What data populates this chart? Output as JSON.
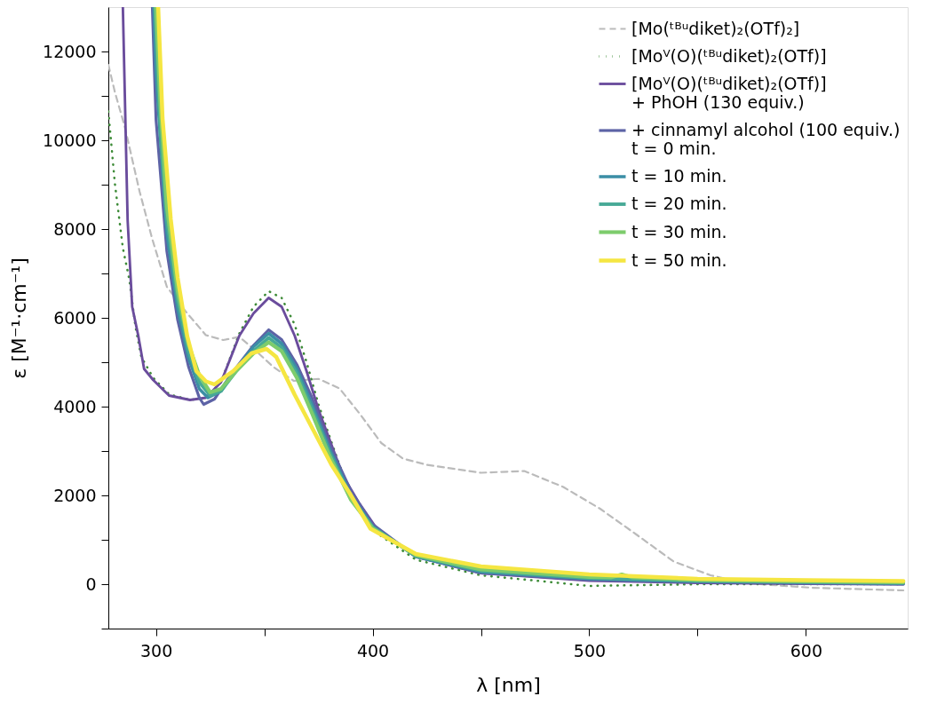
{
  "chart_data": {
    "type": "line",
    "xlabel": "λ [nm]",
    "ylabel": "ε [M⁻¹·cm⁻¹]",
    "xlim": [
      278,
      647
    ],
    "ylim": [
      -1000,
      13000
    ],
    "xticks": [
      {
        "value": 300,
        "label": "300"
      },
      {
        "value": 350,
        "label": null
      },
      {
        "value": 400,
        "label": "400"
      },
      {
        "value": 450,
        "label": null
      },
      {
        "value": 500,
        "label": "500"
      },
      {
        "value": 550,
        "label": null
      },
      {
        "value": 600,
        "label": "600"
      }
    ],
    "yticks": [
      {
        "value": -1000,
        "label": null
      },
      0,
      {
        "value": 1000,
        "label": null
      },
      2000,
      {
        "value": 3000,
        "label": null
      },
      4000,
      {
        "value": 5000,
        "label": null
      },
      6000,
      {
        "value": 7000,
        "label": null
      },
      8000,
      {
        "value": 9000,
        "label": null
      },
      10000,
      {
        "value": 11000,
        "label": null
      },
      12000
    ],
    "grid": false,
    "legend": "top right",
    "series": [
      {
        "name": "[Mo(ᵗᴮᵘdiket)₂(OTf)₂]",
        "color": "#bbbbbb",
        "line_style": "dashed",
        "x": [
          278,
          281,
          285.6,
          292.4,
          298.3,
          305,
          313.6,
          323,
          331,
          338.5,
          346,
          354,
          363.6,
          375,
          384.7,
          394.5,
          404,
          414,
          425,
          450,
          470,
          488,
          505,
          522,
          539,
          556,
          573,
          602.5,
          645
        ],
        "values": [
          11700,
          11090,
          10300,
          8850,
          7770,
          6700,
          6150,
          5610,
          5500,
          5570,
          5260,
          4900,
          4580,
          4625,
          4410,
          3810,
          3180,
          2830,
          2690,
          2510,
          2550,
          2190,
          1700,
          1110,
          510,
          200,
          20,
          -80,
          -140
        ]
      },
      {
        "name": "[Moⱽ(O)(ᵗᴮᵘdiket)₂(OTf)]",
        "color": "#3d8b37",
        "line_style": "dotted",
        "x": [
          278,
          281,
          284.7,
          287.7,
          290.5,
          293.2,
          298.7,
          306,
          315.7,
          323,
          330,
          338.5,
          345,
          352,
          358,
          364,
          369.5,
          375,
          381,
          386.4,
          393.6,
          402,
          420,
          450,
          500,
          550,
          600,
          645
        ],
        "values": [
          10650,
          9030,
          7570,
          6860,
          5800,
          5120,
          4650,
          4280,
          4150,
          4200,
          4550,
          5650,
          6250,
          6600,
          6450,
          5850,
          5000,
          4050,
          3200,
          2450,
          1800,
          1150,
          550,
          200,
          -40,
          0,
          0,
          0
        ]
      },
      {
        "name": "[Moⱽ(O)(ᵗᴮᵘdiket)₂(OTf)]\n+ PhOH (130 equiv.)",
        "color": "#6a4c9c",
        "line_style": "solid",
        "x": [
          284.7,
          286.9,
          289,
          291.8,
          294.5,
          298.7,
          306,
          315.7,
          323,
          330,
          338.5,
          345,
          352,
          358,
          364,
          369.5,
          375,
          381,
          386.4,
          393.6,
          402,
          420,
          450,
          500,
          550,
          600,
          645
        ],
        "values": [
          13000,
          8200,
          6250,
          5600,
          4850,
          4600,
          4250,
          4150,
          4200,
          4550,
          5600,
          6100,
          6450,
          6250,
          5600,
          4800,
          3930,
          3140,
          2430,
          1840,
          1245,
          620,
          250,
          80,
          30,
          10,
          0
        ]
      },
      {
        "name": "+ cinnamyl alcohol (100 equiv.)\nt = 0 min.",
        "color": "#5d63a6",
        "line_style": "solid",
        "x": [
          298.3,
          300,
          305,
          310,
          315,
          320,
          322,
          327,
          335,
          345,
          352,
          358,
          365,
          372,
          380,
          390,
          400,
          420,
          450,
          500,
          550,
          600,
          645
        ],
        "values": [
          13000,
          10470,
          7500,
          5950,
          4900,
          4200,
          4050,
          4170,
          4750,
          5380,
          5730,
          5510,
          4950,
          4200,
          3150,
          2100,
          1350,
          620,
          250,
          100,
          50,
          20,
          0
        ]
      },
      {
        "name": "t = 10 min.",
        "color": "#3b8ea5",
        "line_style": "solid",
        "x": [
          299,
          300,
          305,
          310,
          315,
          320,
          324,
          330,
          337,
          345,
          352,
          358,
          365,
          372,
          380,
          390,
          400,
          420,
          450,
          500,
          550,
          600,
          645
        ],
        "values": [
          13000,
          11500,
          7900,
          6200,
          5100,
          4400,
          4200,
          4350,
          4850,
          5350,
          5650,
          5420,
          4850,
          4050,
          3050,
          2000,
          1300,
          620,
          280,
          120,
          60,
          40,
          20
        ]
      },
      {
        "name": "t = 20 min.",
        "color": "#46a996",
        "line_style": "solid",
        "x": [
          299.5,
          302,
          305,
          310,
          315,
          320,
          325,
          330,
          337,
          345,
          352,
          358,
          365,
          372,
          380,
          390,
          400,
          420,
          450,
          500,
          550,
          600,
          645
        ],
        "values": [
          13000,
          10200,
          8200,
          6400,
          5250,
          4550,
          4250,
          4350,
          4800,
          5250,
          5550,
          5330,
          4750,
          3950,
          2980,
          1950,
          1280,
          640,
          300,
          140,
          80,
          50,
          30
        ]
      },
      {
        "name": "t = 30 min.",
        "color": "#7dcc6c",
        "line_style": "solid",
        "x": [
          300,
          302,
          305,
          310,
          315,
          320,
          325,
          330,
          337,
          345,
          352,
          358,
          365,
          372,
          380,
          390,
          400,
          420,
          450,
          500,
          510,
          515,
          520,
          550,
          600,
          645
        ],
        "values": [
          13000,
          10800,
          8500,
          6600,
          5400,
          4700,
          4320,
          4400,
          4800,
          5200,
          5450,
          5250,
          4650,
          3850,
          2900,
          1900,
          1260,
          650,
          330,
          160,
          150,
          220,
          150,
          90,
          60,
          40
        ]
      },
      {
        "name": "t = 50 min.",
        "color": "#f5e642",
        "line_style": "solid",
        "x": [
          301,
          303,
          306.8,
          310,
          314.4,
          318.6,
          323,
          327,
          335.6,
          344,
          351,
          355.5,
          364,
          372.5,
          381,
          389.4,
          399,
          420,
          450,
          500,
          550,
          600,
          645
        ],
        "values": [
          13000,
          10500,
          8220,
          6900,
          5590,
          4800,
          4570,
          4500,
          4800,
          5200,
          5300,
          5120,
          4270,
          3480,
          2690,
          2050,
          1250,
          680,
          400,
          220,
          120,
          90,
          70
        ]
      }
    ]
  }
}
